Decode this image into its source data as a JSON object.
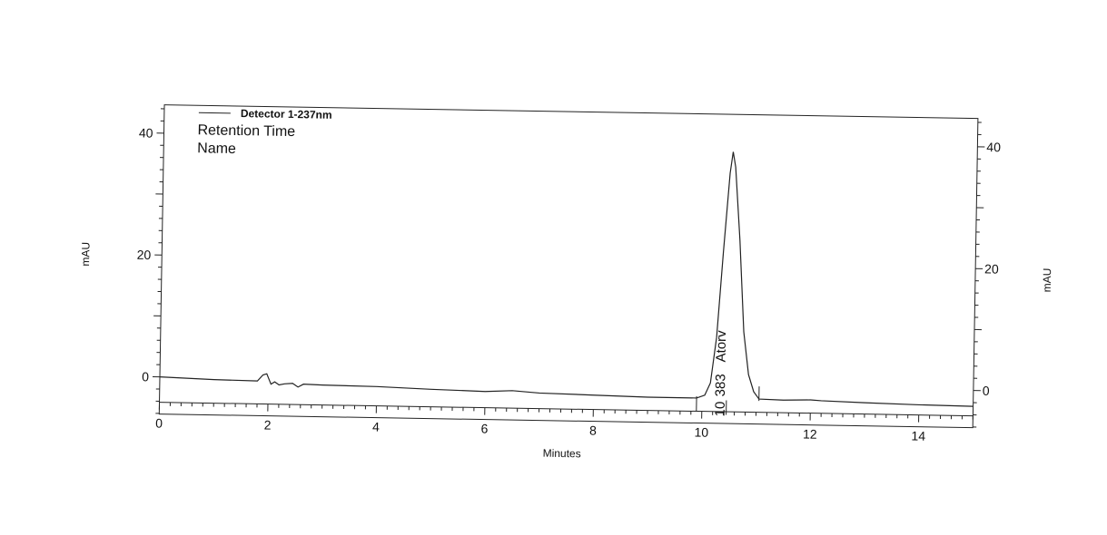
{
  "chart_data": {
    "type": "line",
    "title": "",
    "xlabel": "Minutes",
    "ylabel": "mAU",
    "ylabel_right": "mAU",
    "xlim": [
      0,
      15
    ],
    "ylim": [
      -6.5,
      44
    ],
    "x_ticks": [
      0,
      2,
      4,
      6,
      8,
      10,
      12,
      14
    ],
    "y_ticks": [
      0,
      20,
      40
    ],
    "y_ticks_right": [
      0,
      20,
      40
    ],
    "grid": false,
    "legend": {
      "position": "top-left",
      "entries": [
        "Detector 1-237nm"
      ]
    },
    "info_lines": [
      "Retention Time",
      "Name"
    ],
    "series": [
      {
        "name": "Detector 1-237nm",
        "x": [
          0,
          1.0,
          1.8,
          1.9,
          1.97,
          2.05,
          2.12,
          2.2,
          2.3,
          2.45,
          2.55,
          2.65,
          3.0,
          4.0,
          5.0,
          6.0,
          6.5,
          7.0,
          8.0,
          9.0,
          9.9,
          10.05,
          10.15,
          10.25,
          10.35,
          10.45,
          10.5,
          10.55,
          10.65,
          10.75,
          10.85,
          10.95,
          11.05,
          11.5,
          12.0,
          12.2,
          13.0,
          14.0,
          15.0
        ],
        "y": [
          0,
          -0.3,
          -0.4,
          0.6,
          0.8,
          -0.9,
          -0.5,
          -1.0,
          -0.8,
          -0.7,
          -1.3,
          -0.8,
          -0.9,
          -1.0,
          -1.3,
          -1.5,
          -1.3,
          -1.6,
          -1.8,
          -2.0,
          -2.0,
          -1.5,
          0.5,
          8.0,
          22.0,
          35.0,
          38.5,
          36.0,
          24.0,
          9.0,
          2.0,
          -0.8,
          -2.0,
          -2.1,
          -2.0,
          -2.1,
          -2.3,
          -2.5,
          -2.6
        ]
      }
    ],
    "peaks": [
      {
        "retention_time": "10.383",
        "name": "Atorv",
        "rt_display_parts": [
          "10",
          "383"
        ]
      }
    ]
  }
}
